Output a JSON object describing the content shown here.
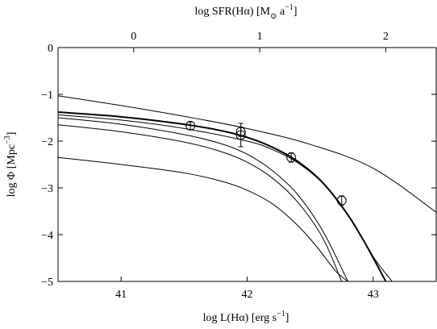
{
  "chart_data": {
    "type": "line",
    "xlabel": "log L(Hα)  [erg s",
    "xlabel_sup": "−1",
    "xlabel_end": "]",
    "ylabel": "log Φ [Mpc",
    "ylabel_sup": "−3",
    "ylabel_end": "]",
    "x2label": "log SFR(Hα)  [M",
    "x2label_sub": "⊙",
    "x2label_mid": " a",
    "x2label_sup": "−1",
    "x2label_end": "]",
    "xlim": [
      40.5,
      43.5
    ],
    "ylim": [
      -5,
      0
    ],
    "x2_offset": 41.1,
    "xticks": [
      41,
      42,
      43
    ],
    "xtick_labels": [
      "41",
      "42",
      "43"
    ],
    "x2ticks": [
      0,
      1,
      2
    ],
    "x2tick_labels": [
      "0",
      "1",
      "2"
    ],
    "yticks": [
      0,
      -1,
      -2,
      -3,
      -4,
      -5
    ],
    "ytick_labels": [
      "0",
      "−1",
      "−2",
      "−3",
      "−4",
      "−5"
    ],
    "grid": false,
    "series": [
      {
        "style": "thin",
        "x": [
          40.5,
          41.0,
          41.5,
          42.0,
          42.5,
          43.0,
          43.5
        ],
        "y": [
          -1.03,
          -1.24,
          -1.47,
          -1.73,
          -2.07,
          -2.58,
          -3.52
        ]
      },
      {
        "style": "thick",
        "x": [
          40.5,
          41.0,
          41.5,
          41.8,
          42.0,
          42.2,
          42.4,
          42.6,
          42.8,
          42.95,
          43.1
        ],
        "y": [
          -1.38,
          -1.48,
          -1.64,
          -1.78,
          -1.92,
          -2.13,
          -2.43,
          -2.89,
          -3.58,
          -4.25,
          -5.0
        ]
      },
      {
        "style": "thin",
        "x": [
          40.5,
          41.0,
          41.5,
          42.0,
          42.2,
          42.4,
          42.6,
          42.8,
          43.0,
          43.15
        ],
        "y": [
          -1.44,
          -1.55,
          -1.73,
          -2.0,
          -2.18,
          -2.46,
          -2.9,
          -3.57,
          -4.47,
          -5.0
        ]
      },
      {
        "style": "thin",
        "x": [
          40.5,
          41.0,
          41.5,
          41.8,
          42.0,
          42.2,
          42.4,
          42.6,
          42.8
        ],
        "y": [
          -1.5,
          -1.64,
          -1.86,
          -2.06,
          -2.28,
          -2.63,
          -3.14,
          -3.92,
          -5.0
        ]
      },
      {
        "style": "thin",
        "x": [
          40.5,
          41.0,
          41.5,
          41.8,
          42.0,
          42.2,
          42.4,
          42.6,
          42.75
        ],
        "y": [
          -1.65,
          -1.8,
          -2.02,
          -2.23,
          -2.45,
          -2.79,
          -3.3,
          -4.07,
          -5.0
        ]
      },
      {
        "style": "thin",
        "x": [
          40.5,
          41.0,
          41.5,
          41.8,
          42.0,
          42.2,
          42.4,
          42.55,
          42.7,
          42.8
        ],
        "y": [
          -2.35,
          -2.5,
          -2.68,
          -2.86,
          -3.05,
          -3.34,
          -3.8,
          -4.25,
          -4.77,
          -5.0
        ]
      }
    ],
    "points": [
      {
        "x": 41.55,
        "y": -1.67,
        "yerr": 0.08
      },
      {
        "x": 41.95,
        "y": -1.8,
        "yerr": 0.1
      },
      {
        "x": 41.95,
        "y": -1.87,
        "yerr": 0.25
      },
      {
        "x": 42.35,
        "y": -2.35,
        "yerr": 0.1
      },
      {
        "x": 42.75,
        "y": -3.27,
        "yerr": 0.1
      }
    ]
  }
}
